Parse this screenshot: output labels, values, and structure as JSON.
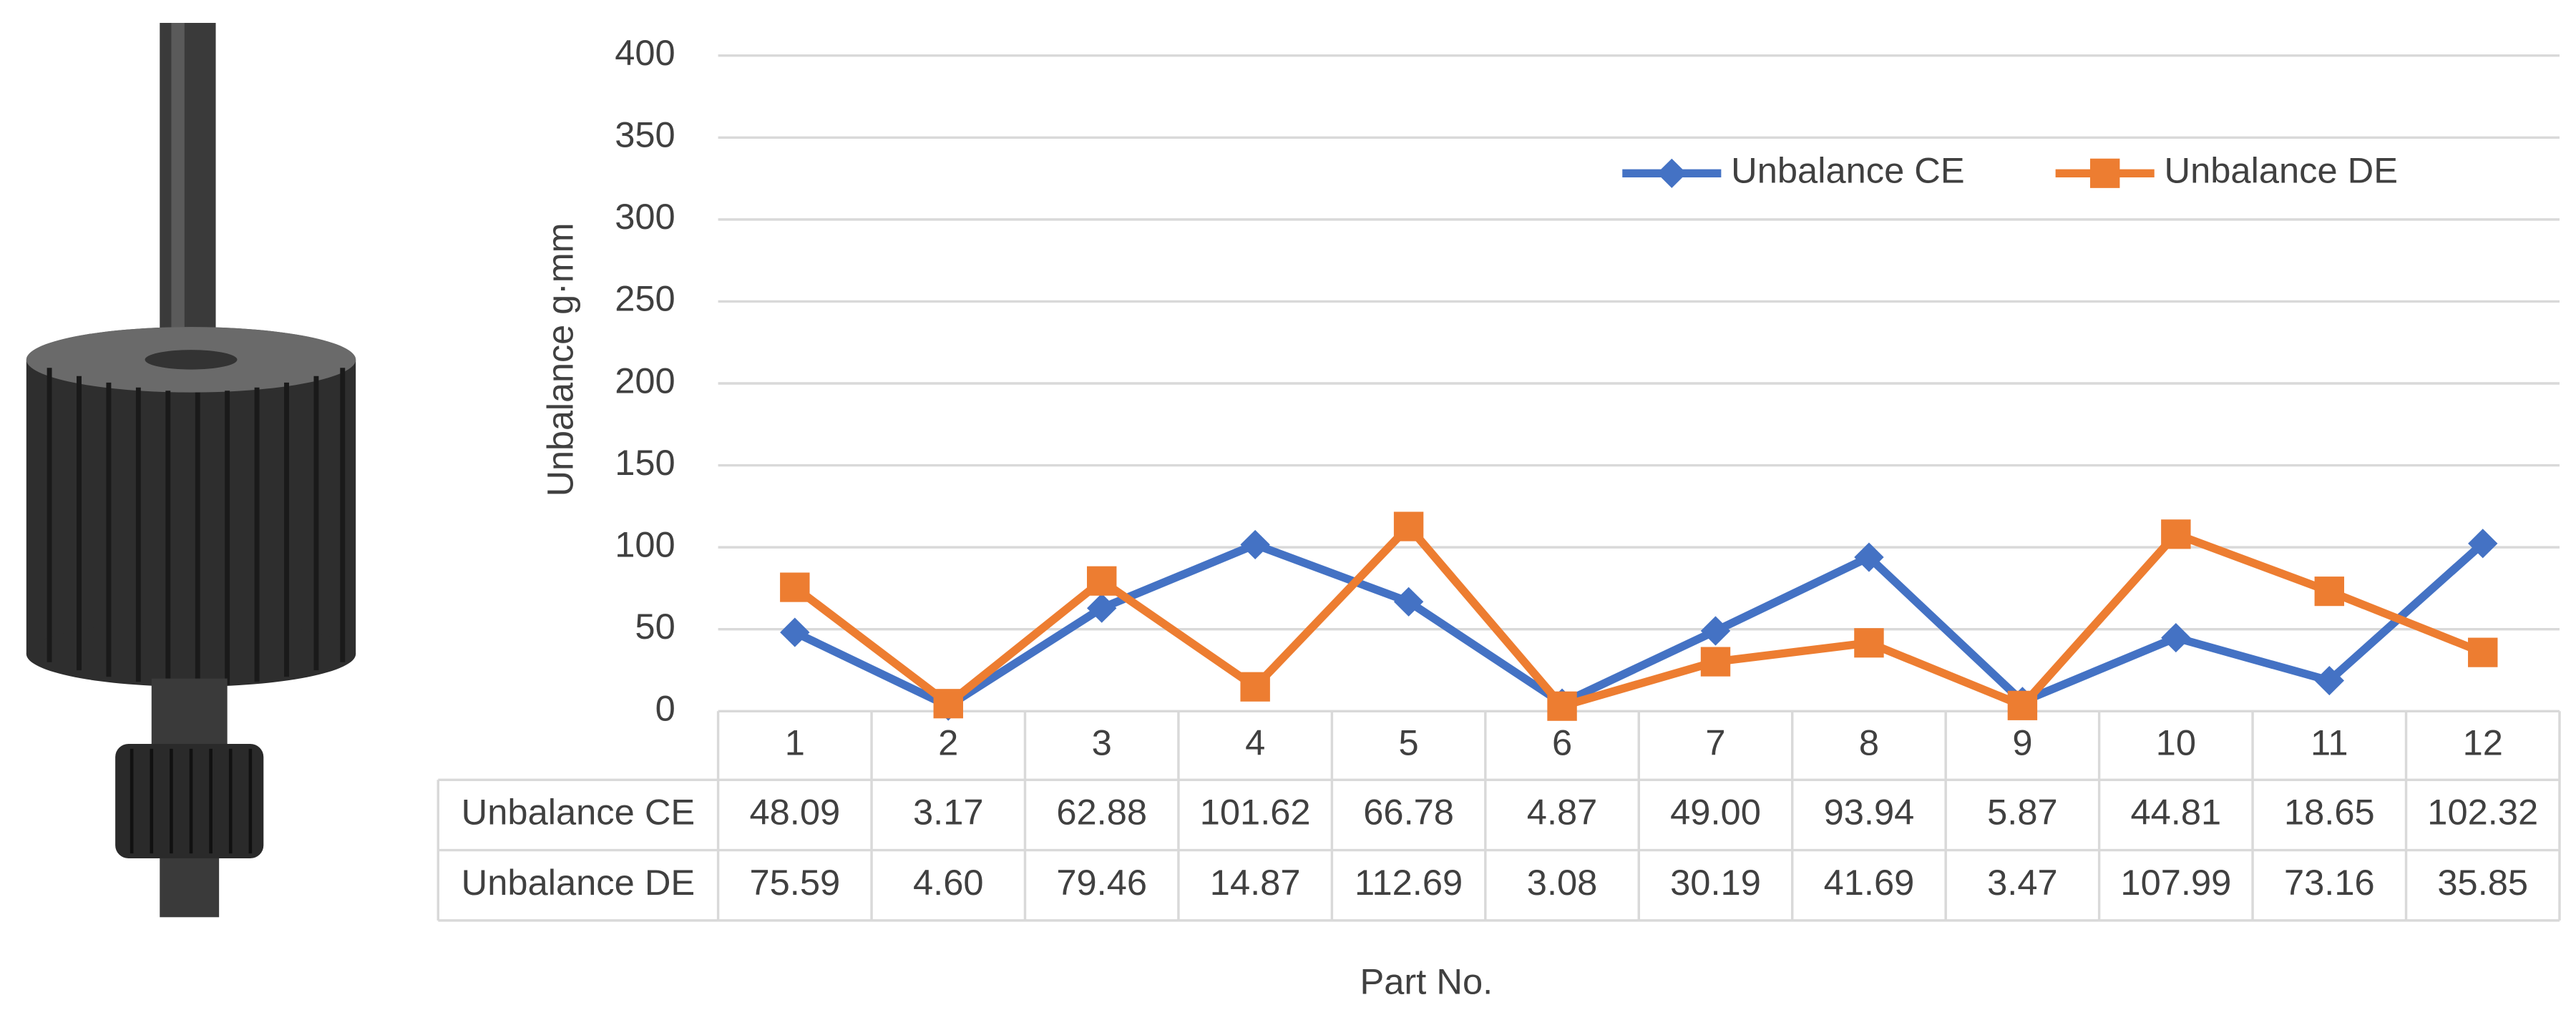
{
  "chart_data": {
    "type": "line",
    "ylabel": "Unbalance g·mm",
    "xlabel": "Part No.",
    "categories": [
      "1",
      "2",
      "3",
      "4",
      "5",
      "6",
      "7",
      "8",
      "9",
      "10",
      "11",
      "12"
    ],
    "series": [
      {
        "name": "Unbalance CE",
        "color": "#4472c4",
        "marker": "diamond",
        "values": [
          48.09,
          3.17,
          62.88,
          101.62,
          66.78,
          4.87,
          49.0,
          93.94,
          5.87,
          44.81,
          18.65,
          102.32
        ],
        "value_labels": [
          "48.09",
          "3.17",
          "62.88",
          "101.62",
          "66.78",
          "4.87",
          "49.00",
          "93.94",
          "5.87",
          "44.81",
          "18.65",
          "102.32"
        ]
      },
      {
        "name": "Unbalance DE",
        "color": "#ed7d31",
        "marker": "square",
        "values": [
          75.59,
          4.6,
          79.46,
          14.87,
          112.69,
          3.08,
          30.19,
          41.69,
          3.47,
          107.99,
          73.16,
          35.85
        ],
        "value_labels": [
          "75.59",
          "4.60",
          "79.46",
          "14.87",
          "112.69",
          "3.08",
          "30.19",
          "41.69",
          "3.47",
          "107.99",
          "73.16",
          "35.85"
        ]
      }
    ],
    "ylim": [
      0,
      400
    ],
    "yticks": [
      0,
      50,
      100,
      150,
      200,
      250,
      300,
      350,
      400
    ],
    "grid": true,
    "legend": "top-right",
    "data_table": true
  }
}
